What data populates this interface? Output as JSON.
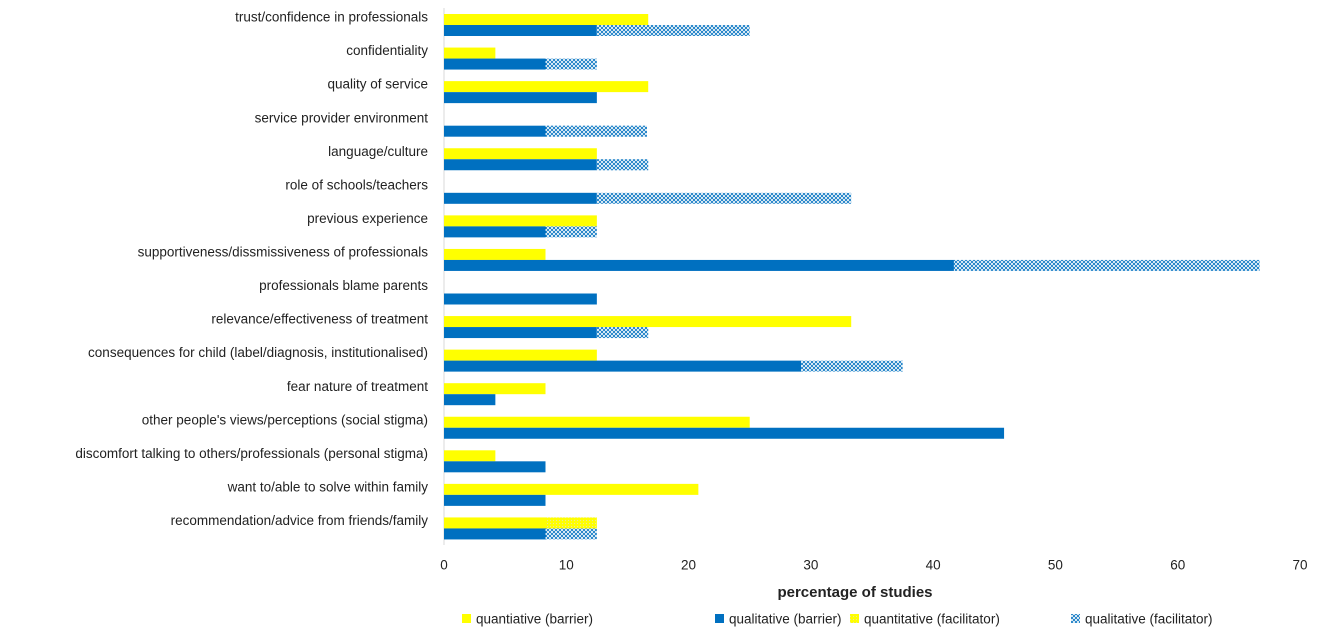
{
  "chart_data": {
    "type": "stacked-hbar",
    "x_label": "percentage of studies",
    "categories": [
      "trust/confidence in professionals",
      "confidentiality",
      "quality of service",
      "service provider environment",
      "language/culture",
      "role of schools/teachers",
      "previous experience",
      "supportiveness/dissmissiveness of professionals",
      "professionals blame parents",
      "relevance/effectiveness of treatment",
      "consequences for child (label/diagnosis, institutionalised)",
      "fear nature of treatment",
      "other people's views/perceptions (social stigma)",
      "discomfort talking to others/professionals (personal stigma)",
      "want to/able to solve within family",
      "recommendation/advice from friends/family"
    ],
    "series": [
      {
        "name": "quantiative (barrier)",
        "color": "#ffff00",
        "row": "top",
        "pattern": "solid",
        "values": [
          16.7,
          4.2,
          16.7,
          0,
          12.5,
          0,
          12.5,
          8.3,
          0,
          33.3,
          12.5,
          8.3,
          25,
          4.2,
          20.8,
          8.3
        ]
      },
      {
        "name": "qualitative (barrier)",
        "color": "#0070c0",
        "row": "bottom",
        "pattern": "solid",
        "values": [
          12.5,
          8.3,
          12.5,
          8.3,
          12.5,
          12.5,
          8.3,
          41.7,
          12.5,
          12.5,
          29.2,
          4.2,
          45.8,
          8.3,
          8.3,
          8.3
        ]
      },
      {
        "name": "quantitative (facilitator)",
        "color": "#ffff00",
        "row": "top",
        "pattern": "dotted",
        "values": [
          0,
          0,
          0,
          0,
          0,
          0,
          0,
          0,
          0,
          0,
          0,
          0,
          0,
          0,
          0,
          4.2
        ]
      },
      {
        "name": "qualitative (facilitator)",
        "color": "#0070c0",
        "row": "bottom",
        "pattern": "crosshatch",
        "values": [
          12.5,
          4.2,
          0,
          8.3,
          4.2,
          20.8,
          4.2,
          25,
          0,
          4.2,
          8.3,
          0,
          0,
          0,
          0,
          4.2
        ]
      }
    ],
    "xlim": [
      0,
      70
    ],
    "xticks": [
      0,
      10,
      20,
      30,
      40,
      50,
      60,
      70
    ],
    "legend": "bottom"
  }
}
